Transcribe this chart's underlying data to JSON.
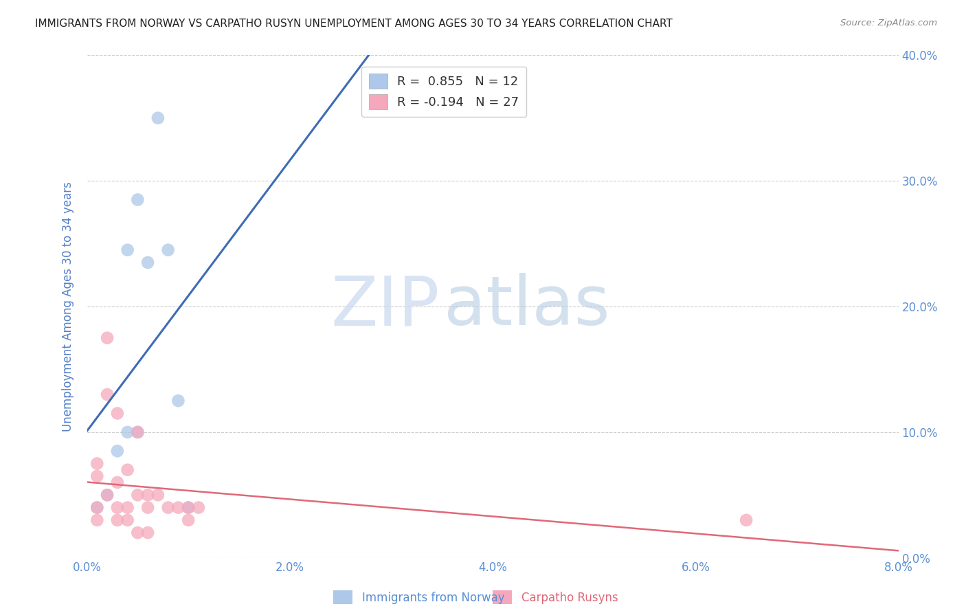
{
  "title": "IMMIGRANTS FROM NORWAY VS CARPATHO RUSYN UNEMPLOYMENT AMONG AGES 30 TO 34 YEARS CORRELATION CHART",
  "source": "Source: ZipAtlas.com",
  "ylabel": "Unemployment Among Ages 30 to 34 years",
  "watermark_zip": "ZIP",
  "watermark_atlas": "atlas",
  "xmin": 0.0,
  "xmax": 0.08,
  "ymin": 0.0,
  "ymax": 0.4,
  "norway_R": 0.855,
  "norway_N": 12,
  "rusyn_R": -0.194,
  "rusyn_N": 27,
  "norway_color": "#adc8e8",
  "rusyn_color": "#f5a8bc",
  "norway_line_color": "#3d6bb5",
  "rusyn_line_color": "#e06878",
  "norway_x": [
    0.001,
    0.002,
    0.003,
    0.004,
    0.004,
    0.005,
    0.005,
    0.006,
    0.007,
    0.008,
    0.009,
    0.01
  ],
  "norway_y": [
    0.04,
    0.05,
    0.085,
    0.1,
    0.245,
    0.285,
    0.1,
    0.235,
    0.35,
    0.245,
    0.125,
    0.04
  ],
  "rusyn_x": [
    0.001,
    0.001,
    0.001,
    0.001,
    0.002,
    0.002,
    0.002,
    0.003,
    0.003,
    0.003,
    0.003,
    0.004,
    0.004,
    0.004,
    0.005,
    0.005,
    0.005,
    0.006,
    0.006,
    0.006,
    0.007,
    0.008,
    0.009,
    0.01,
    0.01,
    0.011,
    0.065
  ],
  "rusyn_y": [
    0.075,
    0.065,
    0.04,
    0.03,
    0.175,
    0.13,
    0.05,
    0.115,
    0.06,
    0.04,
    0.03,
    0.07,
    0.04,
    0.03,
    0.1,
    0.05,
    0.02,
    0.05,
    0.04,
    0.02,
    0.05,
    0.04,
    0.04,
    0.04,
    0.03,
    0.04,
    0.03
  ],
  "yticks": [
    0.0,
    0.1,
    0.2,
    0.3,
    0.4
  ],
  "ytick_labels": [
    "0.0%",
    "10.0%",
    "20.0%",
    "30.0%",
    "40.0%"
  ],
  "xticks": [
    0.0,
    0.02,
    0.04,
    0.06,
    0.08
  ],
  "xtick_labels": [
    "0.0%",
    "2.0%",
    "4.0%",
    "6.0%",
    "8.0%"
  ],
  "background_color": "#ffffff",
  "grid_color": "#cccccc",
  "title_color": "#222222",
  "axis_label_color": "#5580c8",
  "tick_label_color": "#5b8fd4"
}
